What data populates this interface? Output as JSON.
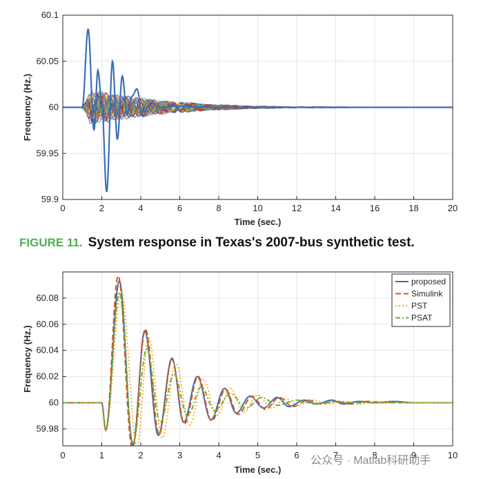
{
  "caption": {
    "label": "FIGURE 11.",
    "text": "System response in Texas's 2007-bus synthetic test."
  },
  "watermark": "公众号 · Matlab科研助手",
  "chart_data": [
    {
      "type": "line",
      "title": "",
      "xlabel": "Time (sec.)",
      "ylabel": "Frequency (Hz.)",
      "xlim": [
        0,
        20
      ],
      "ylim": [
        59.9,
        60.1
      ],
      "xticks": [
        "0",
        "2",
        "4",
        "6",
        "8",
        "10",
        "12",
        "14",
        "16",
        "18",
        "20"
      ],
      "yticks": [
        "59.9",
        "59.95",
        "60",
        "60.05",
        "60.1"
      ],
      "grid": true,
      "series": [
        {
          "color": "#3a6fb5",
          "x": [
            0,
            1.0,
            1.3,
            1.6,
            1.8,
            2.0,
            2.25,
            2.55,
            2.8,
            3.05,
            3.3,
            3.55,
            3.8,
            4.1,
            4.5,
            5.0,
            6.0,
            8.0,
            20
          ],
          "values": [
            60,
            60,
            60.085,
            59.975,
            60.04,
            60.005,
            59.908,
            60.05,
            59.965,
            60.034,
            59.992,
            60.012,
            60.02,
            59.99,
            60.005,
            60.0,
            60.001,
            60,
            60
          ]
        }
      ],
      "ensemble_band": {
        "x": [
          1.0,
          1.5,
          2.0,
          3.0,
          4.0,
          5.0,
          6.0,
          8.0,
          10.0,
          12.0,
          20
        ],
        "amplitude": [
          0.002,
          0.02,
          0.018,
          0.014,
          0.011,
          0.008,
          0.006,
          0.003,
          0.0015,
          0.0008,
          0
        ]
      }
    },
    {
      "type": "line",
      "title": "",
      "xlabel": "Time (sec.)",
      "ylabel": "Frequency (Hz.)",
      "xlim": [
        0,
        10
      ],
      "ylim": [
        59.967,
        60.1
      ],
      "xticks": [
        "0",
        "1",
        "2",
        "3",
        "4",
        "5",
        "6",
        "7",
        "8",
        "9",
        "10"
      ],
      "yticks": [
        "59.98",
        "60",
        "60.02",
        "60.04",
        "60.06",
        "60.08"
      ],
      "grid": true,
      "legend_position": "top-right",
      "series": [
        {
          "name": "proposed",
          "color": "#3a6fb5",
          "style": "solid",
          "x": [
            0,
            1.0,
            1.1,
            1.45,
            1.8,
            2.1,
            2.45,
            2.8,
            3.1,
            3.45,
            3.8,
            4.15,
            4.45,
            4.8,
            5.15,
            5.5,
            5.8,
            6.2,
            6.5,
            6.9,
            7.2,
            7.6,
            8.0,
            8.5,
            9.0,
            10
          ],
          "values": [
            60,
            60,
            59.979,
            60.093,
            59.967,
            60.055,
            59.975,
            60.034,
            59.985,
            60.02,
            59.987,
            60.011,
            59.992,
            60.005,
            59.996,
            60.004,
            59.997,
            60.002,
            59.999,
            60.002,
            59.999,
            60.001,
            60,
            60.001,
            60,
            60
          ]
        },
        {
          "name": "Simulink",
          "color": "#d95319",
          "style": "dashed",
          "x": [
            0,
            1.0,
            1.1,
            1.42,
            1.78,
            2.12,
            2.47,
            2.8,
            3.12,
            3.47,
            3.82,
            4.17,
            4.5,
            4.85,
            5.2,
            5.55,
            5.9,
            6.3,
            6.6,
            7.0,
            7.4,
            7.8,
            8.3,
            9.0,
            10
          ],
          "values": [
            60,
            60,
            59.979,
            60.097,
            59.966,
            60.056,
            59.976,
            60.033,
            59.984,
            60.02,
            59.986,
            60.01,
            59.991,
            60.005,
            59.995,
            60.004,
            59.997,
            60.002,
            59.999,
            60.001,
            59.999,
            60.001,
            60,
            60,
            60
          ]
        },
        {
          "name": "PST",
          "color": "#edb120",
          "style": "dotted",
          "x": [
            0,
            1.0,
            1.1,
            1.5,
            1.9,
            2.2,
            2.55,
            2.9,
            3.25,
            3.6,
            3.95,
            4.3,
            4.65,
            5.0,
            5.35,
            5.7,
            6.05,
            6.4,
            6.8,
            7.2,
            7.6,
            8.0,
            8.6,
            9.2,
            10
          ],
          "values": [
            60,
            60,
            59.979,
            60.085,
            59.967,
            60.05,
            59.973,
            60.03,
            59.983,
            60.018,
            59.99,
            60.011,
            59.993,
            60.006,
            59.996,
            60.003,
            59.998,
            60.002,
            59.999,
            60.001,
            59.999,
            60.001,
            60,
            60,
            60
          ]
        },
        {
          "name": "PSAT",
          "color": "#77ac30",
          "style": "dashdot",
          "x": [
            0,
            1.0,
            1.1,
            1.45,
            1.8,
            2.15,
            2.5,
            2.85,
            3.2,
            3.55,
            3.9,
            4.3,
            4.7,
            5.1,
            5.5,
            6.0,
            6.5,
            7.0,
            7.5,
            8.0,
            9.0,
            10
          ],
          "values": [
            60,
            60,
            59.979,
            60.084,
            59.969,
            60.041,
            59.985,
            60.022,
            59.99,
            60.012,
            59.994,
            60.007,
            59.996,
            60.004,
            59.998,
            60.002,
            59.999,
            60.001,
            60,
            60,
            60,
            60
          ]
        }
      ]
    }
  ]
}
